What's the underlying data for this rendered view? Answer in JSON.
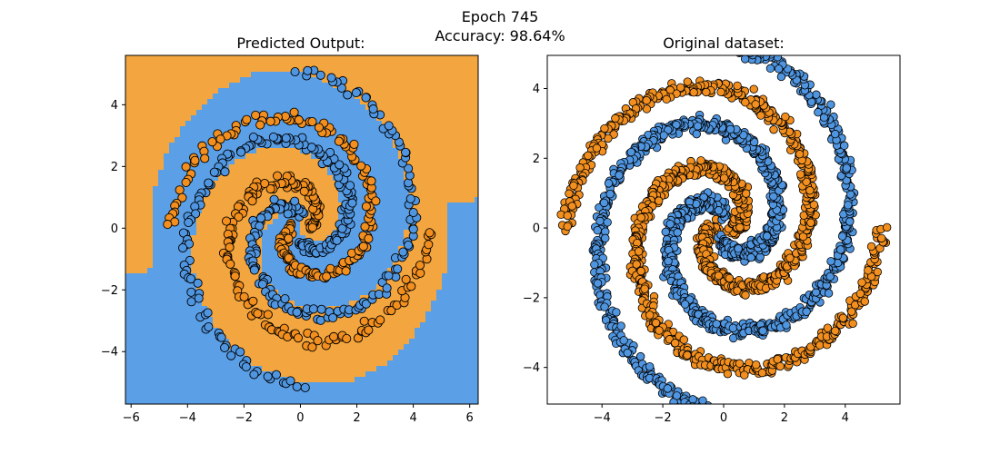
{
  "suptitle": {
    "line1": "Epoch 745",
    "line2": "Accuracy: 98.64%"
  },
  "colors": {
    "class0": "#f3a63f",
    "class1": "#5b9fe6",
    "point_class0": "#f28f1e",
    "point_class1": "#4f95e0",
    "edge": "#000000"
  },
  "chart_data": [
    {
      "type": "scatter",
      "title": "Predicted Output:",
      "xlabel": "",
      "ylabel": "",
      "xlim": [
        -6.2,
        6.3
      ],
      "ylim": [
        -5.7,
        5.6
      ],
      "xticks": [
        -6,
        -4,
        -2,
        0,
        2,
        4,
        6
      ],
      "yticks": [
        -4,
        -2,
        0,
        2,
        4
      ],
      "background": "decision-regions",
      "grid": false,
      "series": [
        {
          "class": 0,
          "arms": [
            0,
            180
          ],
          "r_min": 0.3,
          "r_max": 4.6,
          "points_per_arm": 170,
          "marker": "circle-open"
        },
        {
          "class": 1,
          "arms": [
            90,
            270
          ],
          "r_min": 0.4,
          "r_max": 5.1,
          "points_per_arm": 170,
          "marker": "circle-open"
        }
      ]
    },
    {
      "type": "scatter",
      "title": "Original dataset:",
      "xlabel": "",
      "ylabel": "",
      "xlim": [
        -5.8,
        5.8
      ],
      "ylim": [
        -5.05,
        4.95
      ],
      "xticks": [
        -4,
        -2,
        0,
        2,
        4
      ],
      "yticks": [
        -4,
        -2,
        0,
        2,
        4
      ],
      "grid": false,
      "series": [
        {
          "class": 0,
          "arms": [
            0,
            180
          ],
          "r_min": 0.3,
          "r_max": 5.2,
          "points_per_arm": 650,
          "marker": "circle-filled"
        },
        {
          "class": 1,
          "arms": [
            90,
            270
          ],
          "r_min": 0.4,
          "r_max": 5.3,
          "points_per_arm": 650,
          "marker": "circle-filled"
        }
      ]
    }
  ]
}
